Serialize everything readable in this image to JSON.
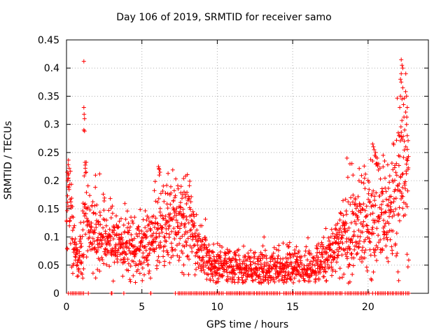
{
  "chart_data": {
    "type": "scatter",
    "title": "Day 106 of 2019, SRMTID for receiver samo",
    "xlabel": "GPS time / hours",
    "ylabel": "SRMTID / TECUs",
    "xlim": [
      0,
      24
    ],
    "ylim": [
      0,
      0.45
    ],
    "xticks": [
      0,
      5,
      10,
      15,
      20
    ],
    "yticks": [
      0,
      0.05,
      0.1,
      0.15,
      0.2,
      0.25,
      0.3,
      0.35,
      0.4,
      0.45
    ],
    "ytick_labels": [
      "0",
      "0.05",
      "0.1",
      "0.15",
      "0.2",
      "0.25",
      "0.3",
      "0.35",
      "0.4",
      "0.45"
    ],
    "grid": true,
    "marker": "+",
    "series": [
      {
        "name": "SRMTID",
        "color": "#ff0000",
        "trend": [
          [
            0.0,
            0.11
          ],
          [
            0.1,
            0.18
          ],
          [
            0.3,
            0.15
          ],
          [
            0.5,
            0.07
          ],
          [
            0.8,
            0.06
          ],
          [
            1.0,
            0.09
          ],
          [
            1.2,
            0.16
          ],
          [
            1.5,
            0.12
          ],
          [
            2.0,
            0.11
          ],
          [
            2.5,
            0.1
          ],
          [
            3.0,
            0.095
          ],
          [
            3.5,
            0.09
          ],
          [
            4.0,
            0.085
          ],
          [
            4.5,
            0.08
          ],
          [
            5.0,
            0.08
          ],
          [
            5.5,
            0.09
          ],
          [
            6.0,
            0.11
          ],
          [
            6.5,
            0.12
          ],
          [
            7.0,
            0.13
          ],
          [
            7.5,
            0.14
          ],
          [
            8.0,
            0.13
          ],
          [
            8.5,
            0.1
          ],
          [
            9.0,
            0.08
          ],
          [
            9.5,
            0.055
          ],
          [
            10.0,
            0.05
          ],
          [
            11.0,
            0.045
          ],
          [
            12.0,
            0.04
          ],
          [
            13.0,
            0.045
          ],
          [
            14.0,
            0.045
          ],
          [
            15.0,
            0.045
          ],
          [
            16.0,
            0.045
          ],
          [
            17.0,
            0.055
          ],
          [
            17.5,
            0.07
          ],
          [
            18.0,
            0.08
          ],
          [
            18.5,
            0.1
          ],
          [
            19.0,
            0.11
          ],
          [
            19.5,
            0.12
          ],
          [
            20.0,
            0.13
          ],
          [
            20.5,
            0.15
          ],
          [
            21.0,
            0.13
          ],
          [
            21.5,
            0.15
          ],
          [
            22.0,
            0.2
          ],
          [
            22.5,
            0.22
          ],
          [
            22.7,
            0.2
          ]
        ],
        "spikes": [
          [
            1.15,
            0.412
          ],
          [
            1.15,
            0.33
          ],
          [
            1.17,
            0.318
          ],
          [
            1.2,
            0.31
          ],
          [
            1.15,
            0.29
          ],
          [
            1.2,
            0.288
          ],
          [
            0.05,
            0.215
          ],
          [
            0.1,
            0.21
          ],
          [
            0.12,
            0.205
          ],
          [
            0.08,
            0.2
          ],
          [
            0.1,
            0.19
          ],
          [
            1.25,
            0.222
          ],
          [
            1.3,
            0.215
          ],
          [
            2.2,
            0.212
          ],
          [
            6.1,
            0.225
          ],
          [
            6.15,
            0.22
          ],
          [
            6.2,
            0.215
          ],
          [
            6.15,
            0.21
          ],
          [
            7.6,
            0.19
          ],
          [
            7.8,
            0.18
          ],
          [
            7.7,
            0.175
          ],
          [
            13.1,
            0.1
          ],
          [
            14.8,
            0.09
          ],
          [
            17.2,
            0.115
          ],
          [
            18.6,
            0.24
          ],
          [
            18.8,
            0.23
          ],
          [
            19.0,
            0.21
          ],
          [
            19.4,
            0.2
          ],
          [
            20.3,
            0.265
          ],
          [
            20.35,
            0.26
          ],
          [
            20.4,
            0.255
          ],
          [
            20.45,
            0.245
          ],
          [
            20.5,
            0.25
          ],
          [
            20.3,
            0.235
          ],
          [
            20.6,
            0.24
          ],
          [
            20.7,
            0.23
          ],
          [
            21.0,
            0.245
          ],
          [
            21.1,
            0.235
          ],
          [
            22.0,
            0.285
          ],
          [
            22.05,
            0.28
          ],
          [
            22.1,
            0.33
          ],
          [
            22.15,
            0.35
          ],
          [
            22.2,
            0.415
          ],
          [
            22.25,
            0.405
          ],
          [
            22.3,
            0.4
          ],
          [
            22.2,
            0.39
          ],
          [
            22.15,
            0.38
          ],
          [
            22.2,
            0.375
          ],
          [
            22.3,
            0.365
          ],
          [
            22.25,
            0.345
          ],
          [
            22.35,
            0.335
          ],
          [
            22.5,
            0.39
          ],
          [
            22.55,
            0.35
          ],
          [
            22.6,
            0.33
          ],
          [
            22.55,
            0.3
          ],
          [
            22.6,
            0.28
          ],
          [
            22.4,
            0.27
          ],
          [
            22.5,
            0.26
          ],
          [
            22.6,
            0.24
          ],
          [
            22.65,
            0.22
          ]
        ],
        "zero_band": [
          [
            0.15,
            1.25
          ],
          [
            1.45,
            1.55
          ],
          [
            3.0,
            3.05
          ],
          [
            3.8,
            3.85
          ],
          [
            5.6,
            5.65
          ],
          [
            7.2,
            7.25
          ],
          [
            7.4,
            10.4
          ],
          [
            10.6,
            14.2
          ],
          [
            14.4,
            15.1
          ],
          [
            15.2,
            18.3
          ],
          [
            18.5,
            20.1
          ],
          [
            20.5,
            22.7
          ]
        ],
        "zero_singles": [
          2.97,
          5.6,
          11.5,
          20.3
        ]
      }
    ]
  }
}
